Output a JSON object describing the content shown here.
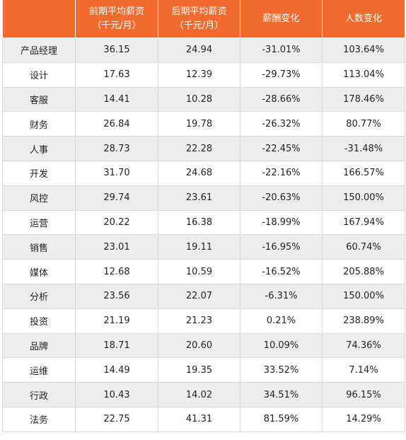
{
  "chart_data": {
    "type": "table",
    "columns": [
      {
        "line1": "",
        "line2": ""
      },
      {
        "line1": "前期平均薪资",
        "line2": "（千元/月）"
      },
      {
        "line1": "后期平均薪资",
        "line2": "（千元/月）"
      },
      {
        "line1": "薪酬变化",
        "line2": ""
      },
      {
        "line1": "人数变化",
        "line2": ""
      }
    ],
    "rows": [
      [
        "产品经理",
        "36.15",
        "24.94",
        "-31.01%",
        "103.64%"
      ],
      [
        "设计",
        "17.63",
        "12.39",
        "-29.73%",
        "113.04%"
      ],
      [
        "客服",
        "14.41",
        "10.28",
        "-28.66%",
        "178.46%"
      ],
      [
        "财务",
        "26.84",
        "19.78",
        "-26.32%",
        "80.77%"
      ],
      [
        "人事",
        "28.73",
        "22.28",
        "-22.45%",
        "-31.48%"
      ],
      [
        "开发",
        "31.70",
        "24.68",
        "-22.16%",
        "166.57%"
      ],
      [
        "风控",
        "29.74",
        "23.61",
        "-20.63%",
        "150.00%"
      ],
      [
        "运营",
        "20.22",
        "16.38",
        "-18.99%",
        "167.94%"
      ],
      [
        "销售",
        "23.01",
        "19.11",
        "-16.95%",
        "60.74%"
      ],
      [
        "媒体",
        "12.68",
        "10.59",
        "-16.52%",
        "205.88%"
      ],
      [
        "分析",
        "23.56",
        "22.07",
        "-6.31%",
        "150.00%"
      ],
      [
        "投资",
        "21.19",
        "21.23",
        "0.21%",
        "238.89%"
      ],
      [
        "品牌",
        "18.71",
        "20.60",
        "10.09%",
        "74.36%"
      ],
      [
        "运维",
        "14.49",
        "19.35",
        "33.52%",
        "7.14%"
      ],
      [
        "行政",
        "10.43",
        "14.02",
        "34.51%",
        "96.15%"
      ],
      [
        "法务",
        "22.75",
        "41.31",
        "81.59%",
        "14.29%"
      ]
    ],
    "colors": {
      "header_bg": "#f26a2e",
      "header_text": "#ffffff",
      "row_alt_bg": "#ededed",
      "row_bg": "#ffffff",
      "border": "#d9d9d9"
    }
  }
}
